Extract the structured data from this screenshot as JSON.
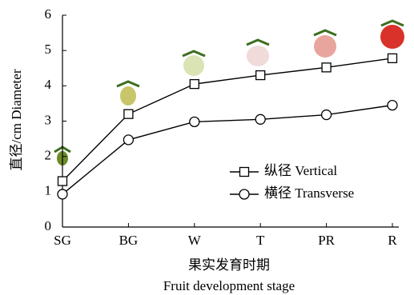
{
  "chart_data": {
    "type": "line",
    "x_label": "果实发育时期",
    "x_label_en": "Fruit development stage",
    "y_label": "直径/cm Diameter",
    "categories": [
      "SG",
      "BG",
      "W",
      "T",
      "PR",
      "R"
    ],
    "series": [
      {
        "name": "纵径 Vertical",
        "color": "#000000",
        "marker": "square",
        "values": [
          1.3,
          3.2,
          4.05,
          4.3,
          4.52,
          4.78
        ]
      },
      {
        "name": "横径 Transverse",
        "color": "#000000",
        "marker": "circle",
        "values": [
          0.93,
          2.47,
          2.98,
          3.05,
          3.18,
          3.45
        ]
      }
    ],
    "ylim": [
      0,
      6
    ],
    "yticks": [
      0,
      1,
      2,
      3,
      4,
      5,
      6
    ],
    "grid": false
  }
}
